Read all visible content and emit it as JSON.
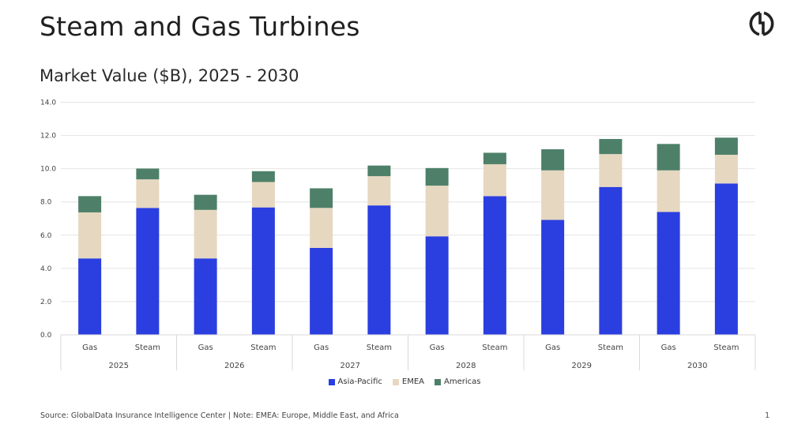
{
  "header": {
    "title": "Steam and Gas Turbines",
    "subtitle": "Market Value ($B), 2025 - 2030"
  },
  "logo_icon": "globaldata-logo-icon",
  "footer": {
    "source": "Source: GlobalData Insurance Intelligence Center | Note: EMEA: Europe, Middle East, and Africa",
    "page_number": "1"
  },
  "chart_data": {
    "type": "bar",
    "stacked": true,
    "title": "Market Value ($B), 2025 - 2030",
    "xlabel": "",
    "ylabel": "",
    "ylim": [
      0,
      14
    ],
    "yticks": [
      "0.0",
      "2.0",
      "4.0",
      "6.0",
      "8.0",
      "10.0",
      "12.0",
      "14.0"
    ],
    "grid": true,
    "legend_position": "bottom-center",
    "groups": [
      "2025",
      "2026",
      "2027",
      "2028",
      "2029",
      "2030"
    ],
    "categories": [
      "Gas",
      "Steam",
      "Gas",
      "Steam",
      "Gas",
      "Steam",
      "Gas",
      "Steam",
      "Gas",
      "Steam",
      "Gas",
      "Steam"
    ],
    "category_groups": [
      "2025",
      "2025",
      "2026",
      "2026",
      "2027",
      "2027",
      "2028",
      "2028",
      "2029",
      "2029",
      "2030",
      "2030"
    ],
    "series": [
      {
        "name": "Asia-Pacific",
        "color": "#2b3ee0",
        "values": [
          4.6,
          7.64,
          4.6,
          7.67,
          5.23,
          7.79,
          5.93,
          8.35,
          6.92,
          8.9,
          7.4,
          9.11
        ]
      },
      {
        "name": "EMEA",
        "color": "#e6d7c0",
        "values": [
          2.77,
          1.72,
          2.92,
          1.53,
          2.41,
          1.76,
          3.05,
          1.92,
          2.98,
          1.98,
          2.5,
          1.73
        ]
      },
      {
        "name": "Americas",
        "color": "#4e8069",
        "values": [
          0.98,
          0.65,
          0.91,
          0.65,
          1.18,
          0.64,
          1.06,
          0.69,
          1.27,
          0.91,
          1.59,
          1.03
        ]
      }
    ]
  }
}
